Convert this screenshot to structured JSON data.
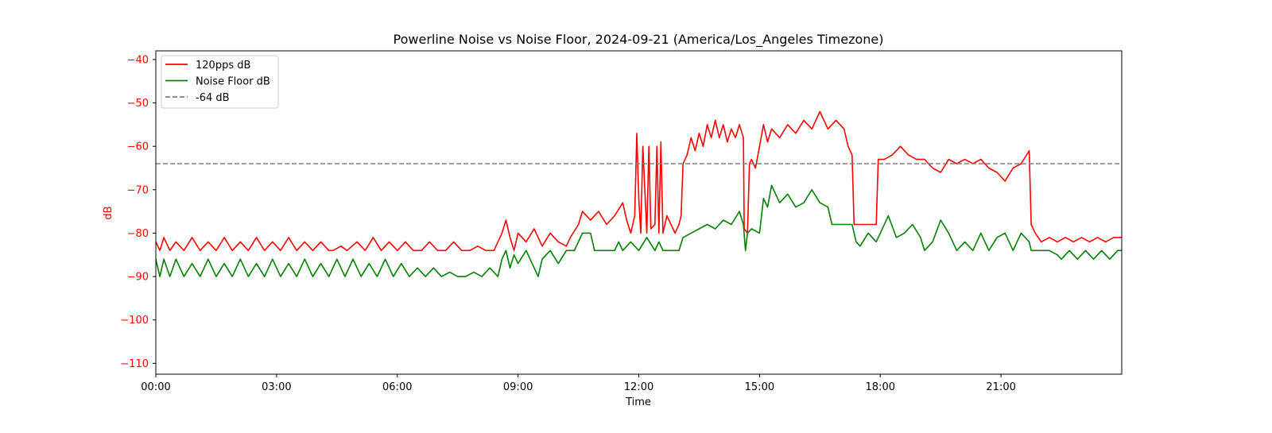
{
  "chart_data": {
    "type": "line",
    "title": "Powerline Noise vs Noise Floor, 2024-09-21 (America/Los_Angeles Timezone)",
    "xlabel": "Time",
    "ylabel": "dB",
    "x_unit": "hours since 00:00",
    "xlim": [
      0,
      24
    ],
    "ylim": [
      -112.5,
      -38
    ],
    "x_ticks": [
      0,
      3,
      6,
      9,
      12,
      15,
      18,
      21
    ],
    "x_tick_labels": [
      "00:00",
      "03:00",
      "06:00",
      "09:00",
      "12:00",
      "15:00",
      "18:00",
      "21:00"
    ],
    "y_ticks": [
      -40,
      -50,
      -60,
      -70,
      -80,
      -90,
      -100,
      -110
    ],
    "y_tick_labels": [
      "−40",
      "−50",
      "−60",
      "−70",
      "−80",
      "−90",
      "−100",
      "−110"
    ],
    "ylabel_color": "#ff0000",
    "ytick_color": "#ff0000",
    "grid": false,
    "legend_position": "top-left",
    "series": [
      {
        "name": "120pps dB",
        "color": "#ff0000",
        "style": "solid",
        "points": [
          [
            0,
            -82
          ],
          [
            0.1,
            -84
          ],
          [
            0.2,
            -81
          ],
          [
            0.35,
            -84
          ],
          [
            0.5,
            -82
          ],
          [
            0.7,
            -84
          ],
          [
            0.9,
            -81
          ],
          [
            1.1,
            -84
          ],
          [
            1.3,
            -82
          ],
          [
            1.5,
            -84
          ],
          [
            1.7,
            -81
          ],
          [
            1.9,
            -84
          ],
          [
            2.1,
            -82
          ],
          [
            2.3,
            -84
          ],
          [
            2.5,
            -81
          ],
          [
            2.7,
            -84
          ],
          [
            2.9,
            -82
          ],
          [
            3.1,
            -84
          ],
          [
            3.3,
            -81
          ],
          [
            3.5,
            -84
          ],
          [
            3.7,
            -82
          ],
          [
            3.9,
            -84
          ],
          [
            4.1,
            -82
          ],
          [
            4.3,
            -84
          ],
          [
            4.4,
            -84
          ],
          [
            4.6,
            -83
          ],
          [
            4.75,
            -84
          ],
          [
            5.0,
            -82
          ],
          [
            5.2,
            -84
          ],
          [
            5.4,
            -81
          ],
          [
            5.6,
            -84
          ],
          [
            5.8,
            -82
          ],
          [
            6.0,
            -84
          ],
          [
            6.2,
            -82
          ],
          [
            6.4,
            -84
          ],
          [
            6.6,
            -84
          ],
          [
            6.8,
            -82
          ],
          [
            7.0,
            -84
          ],
          [
            7.2,
            -84
          ],
          [
            7.4,
            -82
          ],
          [
            7.6,
            -84
          ],
          [
            7.8,
            -84
          ],
          [
            8.0,
            -83
          ],
          [
            8.2,
            -84
          ],
          [
            8.4,
            -84
          ],
          [
            8.5,
            -82
          ],
          [
            8.6,
            -80
          ],
          [
            8.7,
            -77
          ],
          [
            8.8,
            -81
          ],
          [
            8.9,
            -84
          ],
          [
            9.0,
            -80
          ],
          [
            9.2,
            -82
          ],
          [
            9.4,
            -79
          ],
          [
            9.6,
            -83
          ],
          [
            9.8,
            -80
          ],
          [
            10.0,
            -82
          ],
          [
            10.2,
            -83
          ],
          [
            10.3,
            -81
          ],
          [
            10.5,
            -78
          ],
          [
            10.6,
            -75
          ],
          [
            10.8,
            -77
          ],
          [
            11.0,
            -75
          ],
          [
            11.2,
            -78
          ],
          [
            11.4,
            -76
          ],
          [
            11.6,
            -73
          ],
          [
            11.7,
            -77
          ],
          [
            11.8,
            -80
          ],
          [
            11.9,
            -76
          ],
          [
            11.95,
            -57
          ],
          [
            12.0,
            -72
          ],
          [
            12.05,
            -80
          ],
          [
            12.1,
            -60
          ],
          [
            12.2,
            -80
          ],
          [
            12.25,
            -60
          ],
          [
            12.3,
            -79
          ],
          [
            12.4,
            -78
          ],
          [
            12.45,
            -60
          ],
          [
            12.5,
            -80
          ],
          [
            12.55,
            -59
          ],
          [
            12.6,
            -80
          ],
          [
            12.7,
            -76
          ],
          [
            12.8,
            -78
          ],
          [
            12.9,
            -80
          ],
          [
            13.0,
            -78
          ],
          [
            13.05,
            -76
          ],
          [
            13.1,
            -64
          ],
          [
            13.2,
            -62
          ],
          [
            13.3,
            -58
          ],
          [
            13.4,
            -61
          ],
          [
            13.5,
            -57
          ],
          [
            13.6,
            -60
          ],
          [
            13.7,
            -55
          ],
          [
            13.8,
            -58
          ],
          [
            13.9,
            -54
          ],
          [
            14.0,
            -58
          ],
          [
            14.1,
            -55
          ],
          [
            14.2,
            -59
          ],
          [
            14.3,
            -56
          ],
          [
            14.4,
            -58
          ],
          [
            14.5,
            -55
          ],
          [
            14.6,
            -58
          ],
          [
            14.62,
            -79
          ],
          [
            14.7,
            -80
          ],
          [
            14.75,
            -64
          ],
          [
            14.8,
            -63
          ],
          [
            14.9,
            -65
          ],
          [
            15.0,
            -60
          ],
          [
            15.1,
            -55
          ],
          [
            15.2,
            -59
          ],
          [
            15.3,
            -56
          ],
          [
            15.5,
            -58
          ],
          [
            15.7,
            -55
          ],
          [
            15.9,
            -57
          ],
          [
            16.1,
            -54
          ],
          [
            16.3,
            -56
          ],
          [
            16.5,
            -52
          ],
          [
            16.7,
            -56
          ],
          [
            16.9,
            -54
          ],
          [
            17.1,
            -56
          ],
          [
            17.2,
            -60
          ],
          [
            17.3,
            -62
          ],
          [
            17.35,
            -78
          ],
          [
            17.5,
            -78
          ],
          [
            17.9,
            -78
          ],
          [
            17.95,
            -63
          ],
          [
            18.1,
            -63
          ],
          [
            18.3,
            -62
          ],
          [
            18.5,
            -60
          ],
          [
            18.7,
            -62
          ],
          [
            18.9,
            -63
          ],
          [
            19.1,
            -63
          ],
          [
            19.3,
            -65
          ],
          [
            19.5,
            -66
          ],
          [
            19.7,
            -63
          ],
          [
            19.9,
            -64
          ],
          [
            20.1,
            -63
          ],
          [
            20.3,
            -64
          ],
          [
            20.5,
            -63
          ],
          [
            20.7,
            -65
          ],
          [
            20.9,
            -66
          ],
          [
            21.1,
            -68
          ],
          [
            21.3,
            -65
          ],
          [
            21.5,
            -64
          ],
          [
            21.7,
            -61
          ],
          [
            21.75,
            -78
          ],
          [
            21.85,
            -80
          ],
          [
            22.0,
            -82
          ],
          [
            22.2,
            -81
          ],
          [
            22.4,
            -82
          ],
          [
            22.6,
            -81
          ],
          [
            22.8,
            -82
          ],
          [
            23.0,
            -81
          ],
          [
            23.2,
            -82
          ],
          [
            23.4,
            -81
          ],
          [
            23.6,
            -82
          ],
          [
            23.8,
            -81
          ],
          [
            24.0,
            -81
          ]
        ]
      },
      {
        "name": "Noise Floor dB",
        "color": "#008000",
        "style": "solid",
        "points": [
          [
            0,
            -86
          ],
          [
            0.1,
            -90
          ],
          [
            0.2,
            -86
          ],
          [
            0.35,
            -90
          ],
          [
            0.5,
            -86
          ],
          [
            0.7,
            -90
          ],
          [
            0.9,
            -87
          ],
          [
            1.1,
            -90
          ],
          [
            1.3,
            -86
          ],
          [
            1.5,
            -90
          ],
          [
            1.7,
            -87
          ],
          [
            1.9,
            -90
          ],
          [
            2.1,
            -86
          ],
          [
            2.3,
            -90
          ],
          [
            2.5,
            -87
          ],
          [
            2.7,
            -90
          ],
          [
            2.9,
            -86
          ],
          [
            3.1,
            -90
          ],
          [
            3.3,
            -87
          ],
          [
            3.5,
            -90
          ],
          [
            3.7,
            -86
          ],
          [
            3.9,
            -90
          ],
          [
            4.1,
            -87
          ],
          [
            4.3,
            -90
          ],
          [
            4.5,
            -86
          ],
          [
            4.7,
            -90
          ],
          [
            4.9,
            -86
          ],
          [
            5.1,
            -90
          ],
          [
            5.3,
            -87
          ],
          [
            5.5,
            -90
          ],
          [
            5.7,
            -86
          ],
          [
            5.9,
            -90
          ],
          [
            6.1,
            -87
          ],
          [
            6.3,
            -90
          ],
          [
            6.5,
            -88
          ],
          [
            6.7,
            -90
          ],
          [
            6.9,
            -88
          ],
          [
            7.1,
            -90
          ],
          [
            7.3,
            -89
          ],
          [
            7.5,
            -90
          ],
          [
            7.7,
            -90
          ],
          [
            7.9,
            -89
          ],
          [
            8.1,
            -90
          ],
          [
            8.3,
            -88
          ],
          [
            8.5,
            -90
          ],
          [
            8.6,
            -86
          ],
          [
            8.7,
            -84
          ],
          [
            8.8,
            -88
          ],
          [
            8.9,
            -85
          ],
          [
            9.0,
            -87
          ],
          [
            9.2,
            -84
          ],
          [
            9.4,
            -88
          ],
          [
            9.5,
            -90
          ],
          [
            9.6,
            -86
          ],
          [
            9.8,
            -84
          ],
          [
            10.0,
            -87
          ],
          [
            10.2,
            -84
          ],
          [
            10.4,
            -84
          ],
          [
            10.5,
            -82
          ],
          [
            10.6,
            -80
          ],
          [
            10.8,
            -80
          ],
          [
            10.9,
            -84
          ],
          [
            11.2,
            -84
          ],
          [
            11.4,
            -84
          ],
          [
            11.5,
            -82
          ],
          [
            11.6,
            -84
          ],
          [
            11.8,
            -82
          ],
          [
            12.0,
            -84
          ],
          [
            12.2,
            -81
          ],
          [
            12.4,
            -84
          ],
          [
            12.5,
            -82
          ],
          [
            12.6,
            -84
          ],
          [
            12.8,
            -84
          ],
          [
            13.0,
            -84
          ],
          [
            13.1,
            -81
          ],
          [
            13.3,
            -80
          ],
          [
            13.5,
            -79
          ],
          [
            13.7,
            -78
          ],
          [
            13.9,
            -79
          ],
          [
            14.1,
            -77
          ],
          [
            14.3,
            -78
          ],
          [
            14.5,
            -75
          ],
          [
            14.6,
            -78
          ],
          [
            14.65,
            -84
          ],
          [
            14.7,
            -80
          ],
          [
            14.8,
            -79
          ],
          [
            15.0,
            -80
          ],
          [
            15.1,
            -72
          ],
          [
            15.2,
            -74
          ],
          [
            15.3,
            -69
          ],
          [
            15.5,
            -73
          ],
          [
            15.7,
            -71
          ],
          [
            15.9,
            -74
          ],
          [
            16.1,
            -73
          ],
          [
            16.3,
            -70
          ],
          [
            16.5,
            -73
          ],
          [
            16.7,
            -74
          ],
          [
            16.8,
            -78
          ],
          [
            17.0,
            -78
          ],
          [
            17.3,
            -78
          ],
          [
            17.4,
            -82
          ],
          [
            17.5,
            -83
          ],
          [
            17.7,
            -80
          ],
          [
            17.9,
            -82
          ],
          [
            18.0,
            -80
          ],
          [
            18.2,
            -76
          ],
          [
            18.4,
            -81
          ],
          [
            18.6,
            -80
          ],
          [
            18.8,
            -78
          ],
          [
            19.0,
            -81
          ],
          [
            19.1,
            -84
          ],
          [
            19.3,
            -82
          ],
          [
            19.5,
            -77
          ],
          [
            19.7,
            -80
          ],
          [
            19.9,
            -84
          ],
          [
            20.1,
            -82
          ],
          [
            20.3,
            -84
          ],
          [
            20.5,
            -80
          ],
          [
            20.7,
            -84
          ],
          [
            20.9,
            -81
          ],
          [
            21.1,
            -80
          ],
          [
            21.3,
            -84
          ],
          [
            21.5,
            -80
          ],
          [
            21.7,
            -82
          ],
          [
            21.75,
            -84
          ],
          [
            22.0,
            -84
          ],
          [
            22.2,
            -84
          ],
          [
            22.4,
            -85
          ],
          [
            22.5,
            -86
          ],
          [
            22.7,
            -84
          ],
          [
            22.9,
            -86
          ],
          [
            23.1,
            -84
          ],
          [
            23.3,
            -86
          ],
          [
            23.5,
            -84
          ],
          [
            23.7,
            -86
          ],
          [
            23.9,
            -84
          ],
          [
            24.0,
            -84
          ]
        ]
      },
      {
        "name": "-64 dB",
        "color": "#808080",
        "style": "dashed",
        "points": [
          [
            0,
            -64
          ],
          [
            24,
            -64
          ]
        ]
      }
    ]
  }
}
